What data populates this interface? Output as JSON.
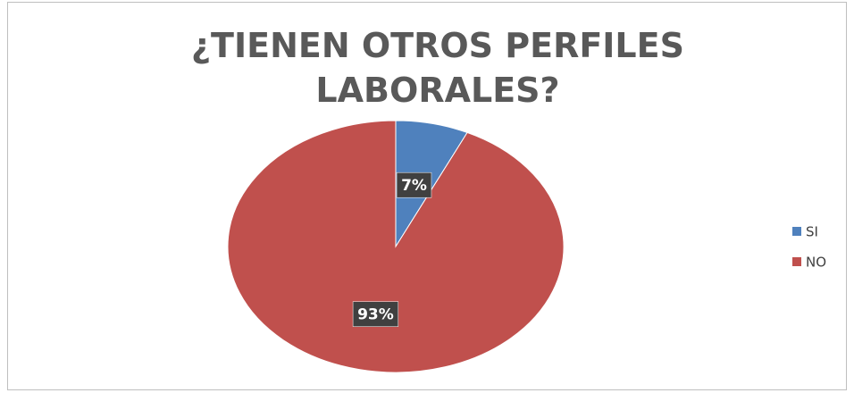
{
  "chart_data": {
    "type": "pie",
    "title": "¿TIENEN OTROS PERFILES LABORALES?",
    "categories": [
      "SI",
      "NO"
    ],
    "values": [
      7,
      93
    ],
    "value_labels": [
      "7%",
      "93%"
    ],
    "colors": [
      "#4f81bd",
      "#c0504d"
    ],
    "legend": "right"
  }
}
